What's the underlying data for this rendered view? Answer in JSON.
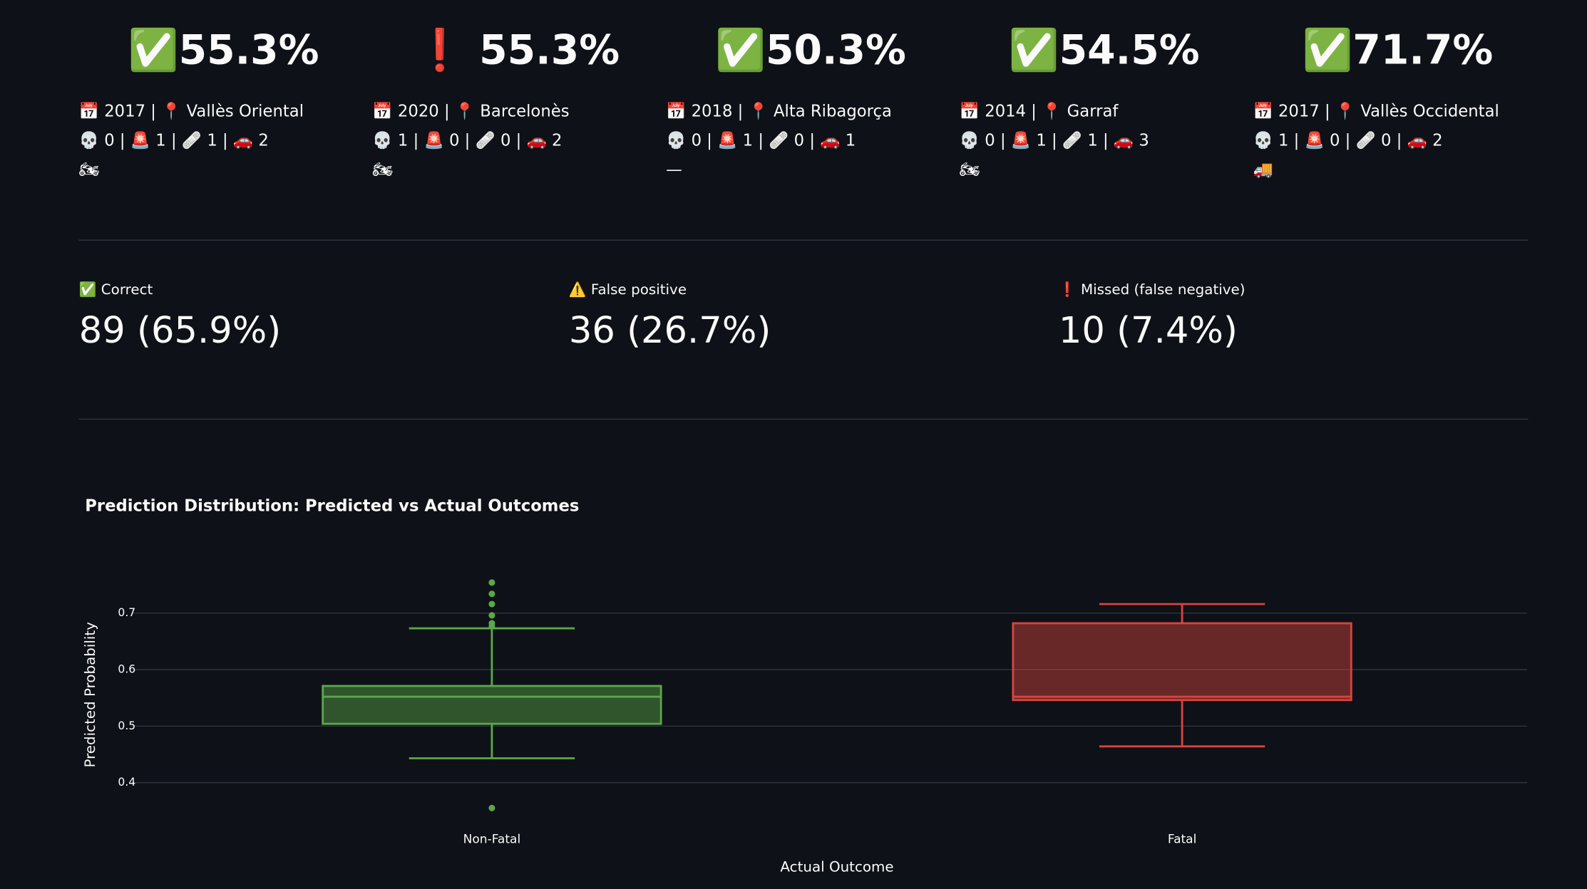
{
  "cards": [
    {
      "score": "✅55.3%",
      "place": "📅 2017 | 📍 Vallès Oriental",
      "counts": "💀 0 | 🚨 1 | 🩹 1 | 🚗 2",
      "vehicle": "🏍"
    },
    {
      "score": "❗ 55.3%",
      "place": "📅 2020 | 📍 Barcelonès",
      "counts": "💀 1 | 🚨 0 | 🩹 0 | 🚗 2",
      "vehicle": "🏍"
    },
    {
      "score": "✅50.3%",
      "place": "📅 2018 | 📍 Alta Ribagorça",
      "counts": "💀 0 | 🚨 1 | 🩹 0 | 🚗 1",
      "vehicle": "—"
    },
    {
      "score": "✅54.5%",
      "place": "📅 2014 | 📍 Garraf",
      "counts": "💀 0 | 🚨 1 | 🩹 1 | 🚗 3",
      "vehicle": "🏍"
    },
    {
      "score": "✅71.7%",
      "place": "📅 2017 | 📍 Vallès Occidental",
      "counts": "💀 1 | 🚨 0 | 🩹 0 | 🚗 2",
      "vehicle": "🚚"
    }
  ],
  "metrics": [
    {
      "label": "✅ Correct",
      "value": "89 (65.9%)"
    },
    {
      "label": "⚠️ False positive",
      "value": "36 (26.7%)"
    },
    {
      "label": "❗ Missed (false negative)",
      "value": "10 (7.4%)"
    }
  ],
  "chart_data": {
    "type": "box",
    "title": "Prediction Distribution: Predicted vs Actual Outcomes",
    "x_label": "Actual Outcome",
    "y_label": "Predicted Probability",
    "categories": [
      "Non-Fatal",
      "Fatal"
    ],
    "series": [
      {
        "name": "Non-Fatal",
        "color": "#5aa84a",
        "min": 0.443,
        "q1": 0.504,
        "median": 0.552,
        "q3": 0.571,
        "max": 0.673,
        "outliers": [
          0.754,
          0.734,
          0.716,
          0.696,
          0.682,
          0.677,
          0.355
        ]
      },
      {
        "name": "Fatal",
        "color": "#d9443f",
        "min": 0.464,
        "q1": 0.546,
        "median": 0.552,
        "q3": 0.682,
        "max": 0.716,
        "outliers": []
      }
    ],
    "ylim": [
      0.33,
      0.79
    ],
    "yticks": [
      0.4,
      0.5,
      0.6,
      0.7
    ],
    "grid": true
  }
}
